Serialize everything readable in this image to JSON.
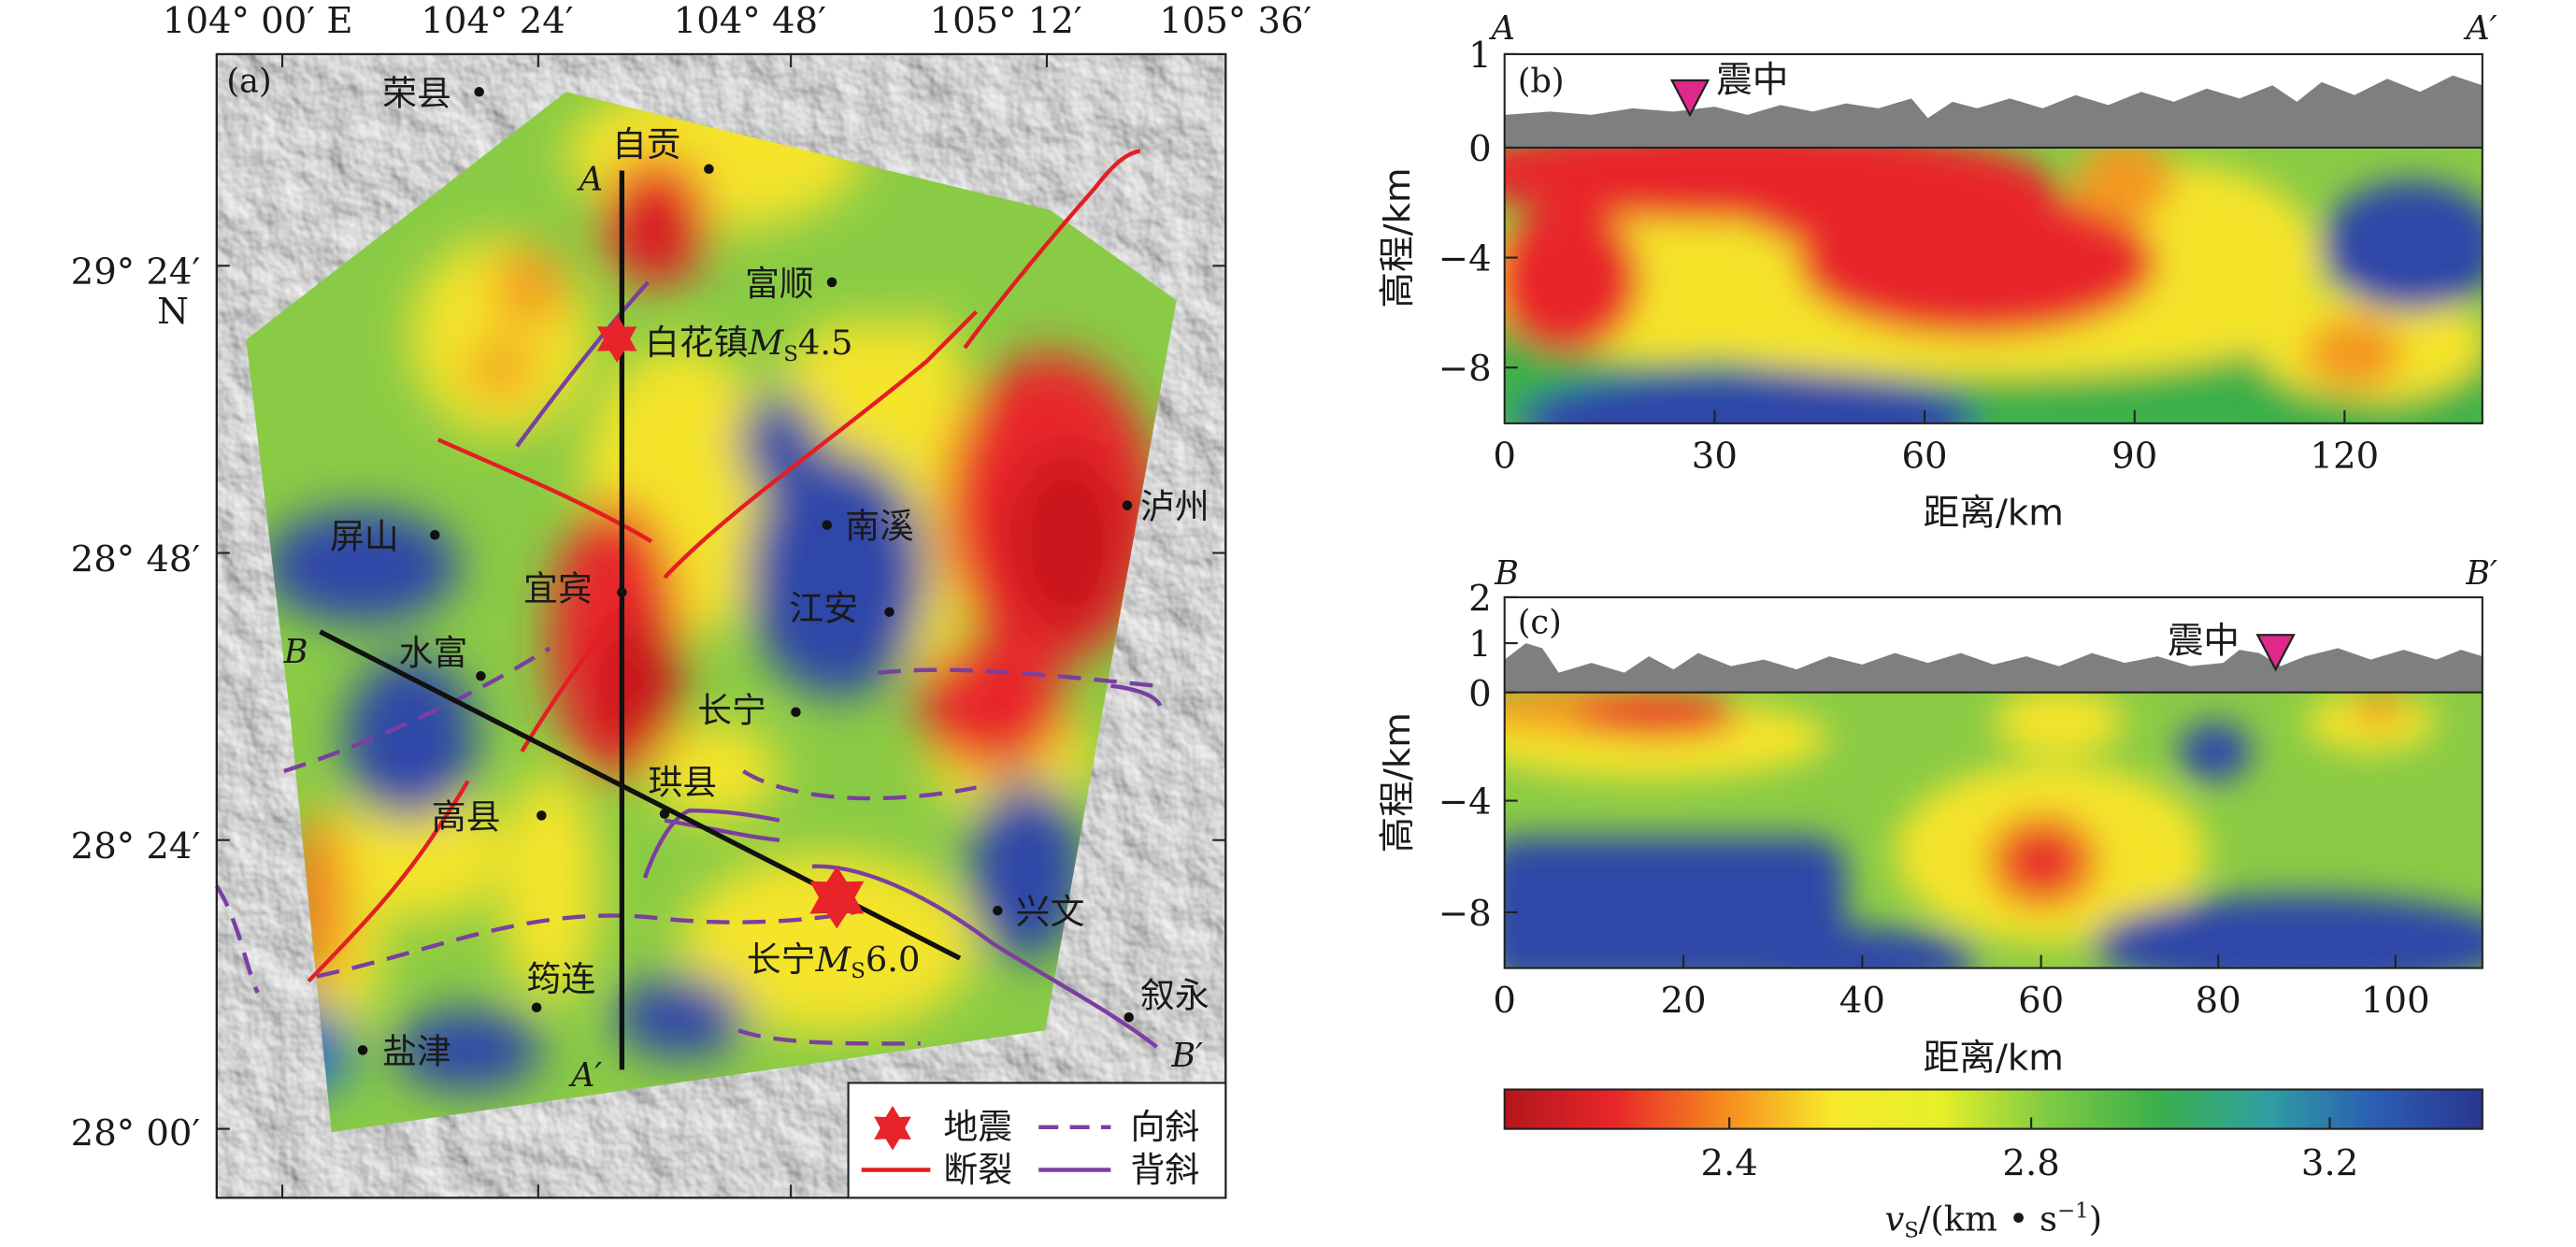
{
  "panel_a": {
    "label": "(a)",
    "lon_ticks": [
      "104° 00′ E",
      "104° 24′",
      "104° 48′",
      "105° 12′",
      "105° 36′"
    ],
    "lat_ticks": [
      "29° 24′",
      "28° 48′",
      "28° 24′",
      "28° 00′"
    ],
    "lat_suffix": "N",
    "profile_A": "A",
    "profile_A_end": "A′",
    "profile_B": "B",
    "profile_B_end": "B′",
    "cities": [
      {
        "name": "荣县"
      },
      {
        "name": "自贡"
      },
      {
        "name": "富顺"
      },
      {
        "name": "屏山"
      },
      {
        "name": "南溪"
      },
      {
        "name": "泸州"
      },
      {
        "name": "宜宾"
      },
      {
        "name": "江安"
      },
      {
        "name": "水富"
      },
      {
        "name": "长宁"
      },
      {
        "name": "高县"
      },
      {
        "name": "珙县"
      },
      {
        "name": "兴文"
      },
      {
        "name": "筠连"
      },
      {
        "name": "叙永"
      },
      {
        "name": "盐津"
      }
    ],
    "quake1": {
      "place": "白花镇",
      "M": "M",
      "sub": "S",
      "mag": "4.5"
    },
    "quake2": {
      "place": "长宁",
      "M": "M",
      "sub": "S",
      "mag": "6.0"
    },
    "legend": {
      "quake": "地震",
      "fault": "断裂",
      "syncline": "向斜",
      "anticline": "背斜"
    },
    "colors": {
      "quake": "#e8232a",
      "fault": "#e31e24",
      "fold": "#7a3fa0"
    }
  },
  "panel_b": {
    "label": "(b)",
    "start": "A",
    "end": "A′",
    "epicenter": "震中",
    "y_ticks": [
      "1",
      "0",
      "−4",
      "−8"
    ],
    "x_ticks": [
      "0",
      "30",
      "60",
      "90",
      "120"
    ],
    "ylabel": "高程/km",
    "xlabel": "距离/km"
  },
  "panel_c": {
    "label": "(c)",
    "start": "B",
    "end": "B′",
    "epicenter": "震中",
    "y_ticks": [
      "2",
      "1",
      "0",
      "−4",
      "−8"
    ],
    "x_ticks": [
      "0",
      "20",
      "40",
      "60",
      "80",
      "100"
    ],
    "ylabel": "高程/km",
    "xlabel": "距离/km"
  },
  "colorbar": {
    "ticks": [
      "2.4",
      "2.8",
      "3.2"
    ],
    "label_main": "v",
    "label_sub": "S",
    "label_unit": "/(km • s",
    "label_exp": "−1",
    "label_close": ")",
    "colors": [
      "#b3161b",
      "#e8262a",
      "#f5891f",
      "#f7e92a",
      "#e6f028",
      "#7fcb43",
      "#3bb04a",
      "#2fa0a0",
      "#2b5fb4",
      "#2a3590"
    ]
  }
}
